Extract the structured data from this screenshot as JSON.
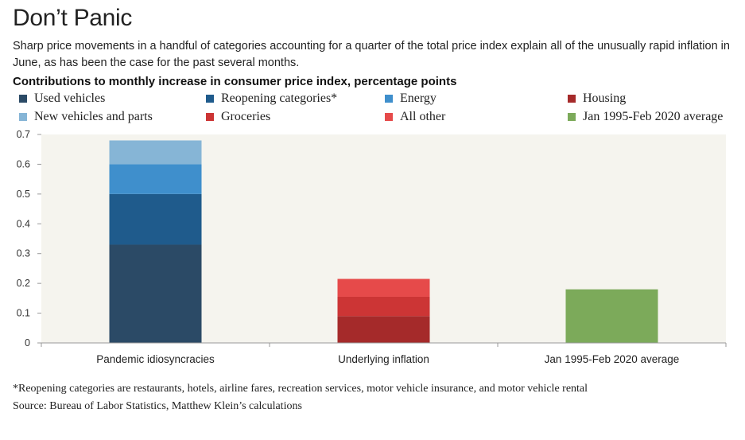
{
  "header": {
    "title": "Don’t Panic",
    "subtitle": "Sharp price movements in a handful of categories accounting for a quarter of the total price index explain all of the unusually rapid inflation in June, as has been the case for the past several months.",
    "chart_heading": "Contributions to monthly increase in consumer price index, percentage points"
  },
  "legend": [
    {
      "label": "Used vehicles",
      "color": "#2b4a66"
    },
    {
      "label": "Reopening categories*",
      "color": "#1f5b8c"
    },
    {
      "label": "Energy",
      "color": "#3f8fcc"
    },
    {
      "label": "Housing",
      "color": "#a52a2a"
    },
    {
      "label": "New vehicles and parts",
      "color": "#86b5d6"
    },
    {
      "label": "Groceries",
      "color": "#cc3535"
    },
    {
      "label": "All other",
      "color": "#e64a4a"
    },
    {
      "label": "Jan 1995-Feb 2020 average",
      "color": "#7caa5a"
    }
  ],
  "chart_data": {
    "type": "bar",
    "stacked": true,
    "title": "Contributions to monthly increase in consumer price index, percentage points",
    "xlabel": "",
    "ylabel": "",
    "ylim": [
      0,
      0.7
    ],
    "yticks": [
      "0",
      "0.1",
      "0.2",
      "0.3",
      "0.4",
      "0.5",
      "0.6",
      "0.7"
    ],
    "grid": false,
    "legend_position": "top",
    "categories": [
      "Pandemic idiosyncracies",
      "Underlying inflation",
      "Jan 1995-Feb 2020 average"
    ],
    "series": [
      {
        "name": "Used vehicles",
        "color": "#2b4a66",
        "values": [
          0.33,
          0,
          0
        ]
      },
      {
        "name": "Reopening categories*",
        "color": "#1f5b8c",
        "values": [
          0.17,
          0,
          0
        ]
      },
      {
        "name": "Energy",
        "color": "#3f8fcc",
        "values": [
          0.1,
          0,
          0
        ]
      },
      {
        "name": "New vehicles and parts",
        "color": "#86b5d6",
        "values": [
          0.08,
          0,
          0
        ]
      },
      {
        "name": "Housing",
        "color": "#a52a2a",
        "values": [
          0,
          0.09,
          0
        ]
      },
      {
        "name": "Groceries",
        "color": "#cc3535",
        "values": [
          0,
          0.065,
          0
        ]
      },
      {
        "name": "All other",
        "color": "#e64a4a",
        "values": [
          0,
          0.06,
          0
        ]
      },
      {
        "name": "Jan 1995-Feb 2020 average",
        "color": "#7caa5a",
        "values": [
          0,
          0,
          0.18
        ]
      }
    ]
  },
  "footnotes": {
    "note": "*Reopening categories are restaurants, hotels, airline fares, recreation services, motor vehicle insurance, and motor vehicle rental",
    "source": "Source: Bureau of Labor Statistics, Matthew Klein’s calculations"
  }
}
